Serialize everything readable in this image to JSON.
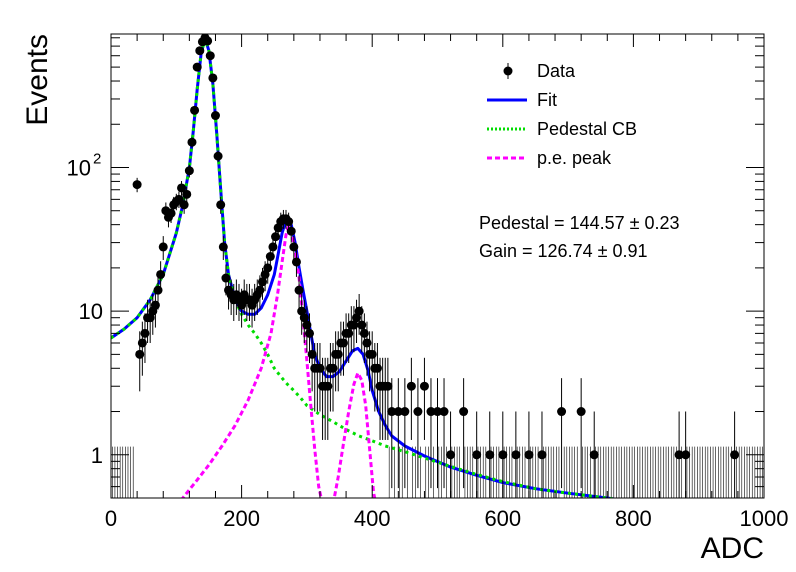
{
  "chart_data": {
    "type": "scatter",
    "xlabel": "ADC",
    "ylabel": "Events",
    "xlim": [
      0,
      1000
    ],
    "ylim": [
      0.5,
      850
    ],
    "yscale": "log",
    "grid": false,
    "x_ticks": [
      {
        "value": 0,
        "label": "0"
      },
      {
        "value": 200,
        "label": "200"
      },
      {
        "value": 400,
        "label": "400"
      },
      {
        "value": 600,
        "label": "600"
      },
      {
        "value": 800,
        "label": "800"
      },
      {
        "value": 1000,
        "label": "1000"
      }
    ],
    "y_ticks": [
      {
        "value": 1,
        "label": "1"
      },
      {
        "value": 10,
        "label": "10"
      },
      {
        "value": 100,
        "label": "10",
        "sup": "2"
      }
    ],
    "legend": {
      "placement": "top-right",
      "entries": [
        {
          "label": "Data",
          "style": "marker",
          "color": "#000000"
        },
        {
          "label": "Fit",
          "style": "solid",
          "color": "#0000ff"
        },
        {
          "label": "Pedestal CB",
          "style": "dotted",
          "color": "#00dd00"
        },
        {
          "label": "p.e. peak",
          "style": "dashed",
          "color": "#ff00ff"
        }
      ]
    },
    "annotations": {
      "pedestal": "Pedestal = 144.57 ± 0.23",
      "gain": "Gain = 126.74 ± 0.91"
    },
    "series": [
      {
        "name": "Data",
        "kind": "points",
        "color": "#000000",
        "points": [
          [
            40,
            76
          ],
          [
            44,
            5
          ],
          [
            48,
            6
          ],
          [
            52,
            7
          ],
          [
            56,
            9
          ],
          [
            60,
            9
          ],
          [
            64,
            10
          ],
          [
            68,
            11
          ],
          [
            72,
            14
          ],
          [
            76,
            18
          ],
          [
            80,
            28
          ],
          [
            84,
            50
          ],
          [
            88,
            45
          ],
          [
            92,
            48
          ],
          [
            96,
            55
          ],
          [
            100,
            58
          ],
          [
            104,
            60
          ],
          [
            108,
            72
          ],
          [
            112,
            55
          ],
          [
            116,
            65
          ],
          [
            120,
            95
          ],
          [
            124,
            150
          ],
          [
            128,
            250
          ],
          [
            132,
            500
          ],
          [
            136,
            650
          ],
          [
            140,
            750
          ],
          [
            144,
            800
          ],
          [
            148,
            760
          ],
          [
            152,
            600
          ],
          [
            156,
            420
          ],
          [
            160,
            230
          ],
          [
            164,
            120
          ],
          [
            168,
            55
          ],
          [
            172,
            28
          ],
          [
            176,
            17
          ],
          [
            180,
            14
          ],
          [
            184,
            13
          ],
          [
            188,
            12
          ],
          [
            192,
            13
          ],
          [
            196,
            12
          ],
          [
            200,
            11
          ],
          [
            204,
            13
          ],
          [
            208,
            12
          ],
          [
            212,
            12
          ],
          [
            216,
            11
          ],
          [
            220,
            12
          ],
          [
            224,
            13
          ],
          [
            228,
            14
          ],
          [
            232,
            16
          ],
          [
            236,
            18
          ],
          [
            240,
            20
          ],
          [
            244,
            24
          ],
          [
            248,
            28
          ],
          [
            252,
            33
          ],
          [
            256,
            38
          ],
          [
            260,
            42
          ],
          [
            264,
            44
          ],
          [
            268,
            44
          ],
          [
            272,
            42
          ],
          [
            276,
            36
          ],
          [
            280,
            28
          ],
          [
            284,
            22
          ],
          [
            288,
            14
          ],
          [
            292,
            10
          ],
          [
            296,
            9
          ],
          [
            300,
            8
          ],
          [
            304,
            7
          ],
          [
            308,
            5
          ],
          [
            312,
            4
          ],
          [
            316,
            4
          ],
          [
            320,
            4
          ],
          [
            324,
            3
          ],
          [
            328,
            3
          ],
          [
            332,
            3
          ],
          [
            336,
            4
          ],
          [
            340,
            4
          ],
          [
            344,
            5
          ],
          [
            348,
            5
          ],
          [
            352,
            6
          ],
          [
            356,
            6
          ],
          [
            360,
            7
          ],
          [
            364,
            7
          ],
          [
            368,
            8
          ],
          [
            372,
            8
          ],
          [
            376,
            9
          ],
          [
            380,
            10
          ],
          [
            384,
            8
          ],
          [
            388,
            7
          ],
          [
            392,
            6
          ],
          [
            396,
            5
          ],
          [
            400,
            5
          ],
          [
            404,
            4
          ],
          [
            408,
            4
          ],
          [
            412,
            3
          ],
          [
            416,
            3
          ],
          [
            420,
            3
          ],
          [
            424,
            3
          ],
          [
            430,
            2
          ],
          [
            440,
            2
          ],
          [
            450,
            2
          ],
          [
            460,
            3
          ],
          [
            470,
            2
          ],
          [
            480,
            3
          ],
          [
            490,
            2
          ],
          [
            500,
            2
          ],
          [
            510,
            2
          ],
          [
            520,
            1
          ],
          [
            540,
            2
          ],
          [
            560,
            1
          ],
          [
            580,
            1
          ],
          [
            600,
            1
          ],
          [
            620,
            1
          ],
          [
            640,
            1
          ],
          [
            660,
            1
          ],
          [
            690,
            2
          ],
          [
            720,
            2
          ],
          [
            740,
            1
          ],
          [
            870,
            1
          ],
          [
            880,
            1
          ],
          [
            955,
            1
          ]
        ]
      },
      {
        "name": "Fit",
        "kind": "line",
        "color": "#0000ff",
        "points": [
          [
            0,
            6.5
          ],
          [
            20,
            7.5
          ],
          [
            40,
            9
          ],
          [
            60,
            12
          ],
          [
            80,
            18
          ],
          [
            100,
            35
          ],
          [
            110,
            55
          ],
          [
            120,
            100
          ],
          [
            126,
            180
          ],
          [
            132,
            350
          ],
          [
            138,
            620
          ],
          [
            144,
            790
          ],
          [
            150,
            650
          ],
          [
            156,
            380
          ],
          [
            162,
            170
          ],
          [
            168,
            70
          ],
          [
            174,
            30
          ],
          [
            180,
            18
          ],
          [
            190,
            12
          ],
          [
            200,
            10
          ],
          [
            210,
            9.5
          ],
          [
            220,
            9.5
          ],
          [
            230,
            10.5
          ],
          [
            240,
            13
          ],
          [
            250,
            18
          ],
          [
            256,
            25
          ],
          [
            262,
            35
          ],
          [
            268,
            43
          ],
          [
            272,
            44
          ],
          [
            276,
            40
          ],
          [
            282,
            30
          ],
          [
            288,
            20
          ],
          [
            294,
            14
          ],
          [
            300,
            10
          ],
          [
            306,
            7
          ],
          [
            312,
            5
          ],
          [
            320,
            4
          ],
          [
            330,
            3.5
          ],
          [
            340,
            3.5
          ],
          [
            350,
            3.8
          ],
          [
            360,
            4.5
          ],
          [
            370,
            5.3
          ],
          [
            378,
            5.5
          ],
          [
            386,
            5
          ],
          [
            394,
            3.8
          ],
          [
            400,
            2.8
          ],
          [
            410,
            2
          ],
          [
            420,
            1.6
          ],
          [
            430,
            1.35
          ],
          [
            450,
            1.15
          ],
          [
            480,
            0.98
          ],
          [
            520,
            0.82
          ],
          [
            560,
            0.72
          ],
          [
            600,
            0.64
          ],
          [
            650,
            0.58
          ],
          [
            700,
            0.54
          ],
          [
            760,
            0.5
          ],
          [
            800,
            0.47
          ],
          [
            850,
            0.44
          ]
        ]
      },
      {
        "name": "Pedestal CB",
        "kind": "line",
        "color": "#00dd00",
        "points": [
          [
            0,
            6.5
          ],
          [
            20,
            7.5
          ],
          [
            40,
            9
          ],
          [
            60,
            12
          ],
          [
            80,
            18
          ],
          [
            100,
            35
          ],
          [
            110,
            55
          ],
          [
            120,
            100
          ],
          [
            126,
            180
          ],
          [
            132,
            350
          ],
          [
            138,
            620
          ],
          [
            144,
            790
          ],
          [
            150,
            650
          ],
          [
            156,
            380
          ],
          [
            162,
            170
          ],
          [
            168,
            70
          ],
          [
            174,
            30
          ],
          [
            180,
            18
          ],
          [
            190,
            12
          ],
          [
            200,
            9.5
          ],
          [
            210,
            8
          ],
          [
            220,
            7
          ],
          [
            230,
            6
          ],
          [
            240,
            5
          ],
          [
            250,
            4
          ],
          [
            260,
            3.5
          ],
          [
            270,
            3.1
          ],
          [
            280,
            2.8
          ],
          [
            290,
            2.5
          ],
          [
            300,
            2.2
          ],
          [
            320,
            1.9
          ],
          [
            340,
            1.7
          ],
          [
            360,
            1.5
          ],
          [
            380,
            1.35
          ],
          [
            400,
            1.25
          ],
          [
            420,
            1.15
          ],
          [
            450,
            1.05
          ],
          [
            480,
            0.95
          ],
          [
            520,
            0.83
          ],
          [
            560,
            0.73
          ],
          [
            600,
            0.65
          ],
          [
            650,
            0.58
          ],
          [
            700,
            0.54
          ],
          [
            760,
            0.5
          ],
          [
            800,
            0.47
          ],
          [
            850,
            0.44
          ]
        ]
      },
      {
        "name": "p.e. peak",
        "kind": "line",
        "color": "#ff00ff",
        "points": [
          [
            90,
            0.4
          ],
          [
            110,
            0.5
          ],
          [
            130,
            0.65
          ],
          [
            150,
            0.85
          ],
          [
            170,
            1.15
          ],
          [
            190,
            1.6
          ],
          [
            210,
            2.4
          ],
          [
            230,
            4
          ],
          [
            245,
            7
          ],
          [
            255,
            13
          ],
          [
            262,
            22
          ],
          [
            268,
            34
          ],
          [
            272,
            39
          ],
          [
            276,
            36
          ],
          [
            282,
            27
          ],
          [
            288,
            17
          ],
          [
            294,
            9
          ],
          [
            300,
            4.5
          ],
          [
            306,
            2.2
          ],
          [
            312,
            1.1
          ],
          [
            318,
            0.6
          ],
          [
            324,
            0.45
          ],
          [
            332,
            0.4
          ],
          [
            340,
            0.45
          ],
          [
            348,
            0.7
          ],
          [
            356,
            1.2
          ],
          [
            364,
            2
          ],
          [
            372,
            3.1
          ],
          [
            378,
            3.7
          ],
          [
            384,
            3.3
          ],
          [
            390,
            2.2
          ],
          [
            396,
            1.1
          ],
          [
            402,
            0.55
          ],
          [
            408,
            0.4
          ]
        ]
      }
    ]
  }
}
